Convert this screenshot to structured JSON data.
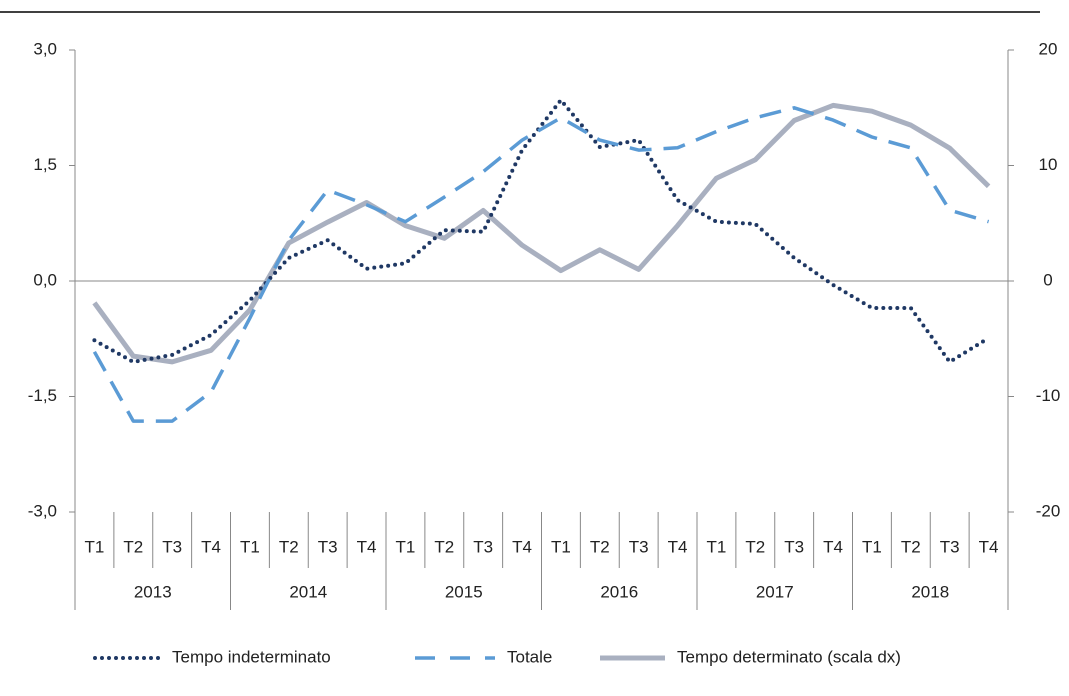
{
  "chart_data": {
    "type": "line",
    "categories": [
      "T1",
      "T2",
      "T3",
      "T4",
      "T1",
      "T2",
      "T3",
      "T4",
      "T1",
      "T2",
      "T3",
      "T4",
      "T1",
      "T2",
      "T3",
      "T4",
      "T1",
      "T2",
      "T3",
      "T4",
      "T1",
      "T2",
      "T3",
      "T4"
    ],
    "years": [
      "2013",
      "2014",
      "2015",
      "2016",
      "2017",
      "2018"
    ],
    "series": [
      {
        "name": "Tempo indeterminato",
        "color": "#1f3864",
        "style": "dotted",
        "values": [
          -0.77,
          -1.05,
          -0.96,
          -0.7,
          -0.25,
          0.3,
          0.53,
          0.16,
          0.23,
          0.66,
          0.64,
          1.7,
          2.35,
          1.74,
          1.83,
          1.05,
          0.77,
          0.74,
          0.3,
          -0.05,
          -0.35,
          -0.35,
          -1.05,
          -0.74
        ]
      },
      {
        "name": "Totale",
        "color": "#5b9bd5",
        "style": "dashed",
        "values": [
          -0.92,
          -1.82,
          -1.82,
          -1.44,
          -0.48,
          0.53,
          1.18,
          0.99,
          0.77,
          1.09,
          1.42,
          1.83,
          2.12,
          1.83,
          1.7,
          1.73,
          1.94,
          2.12,
          2.25,
          2.09,
          1.87,
          1.73,
          0.92,
          0.77
        ]
      },
      {
        "name": "Tempo determinato (scala dx)",
        "color": "#a9b0c0",
        "style": "solid",
        "axis": "y2",
        "values": [
          -1.9,
          -6.5,
          -7.0,
          -6.0,
          -2.5,
          3.3,
          5.1,
          6.8,
          4.8,
          3.7,
          6.1,
          3.1,
          0.9,
          2.7,
          1.0,
          4.8,
          8.9,
          10.5,
          13.9,
          15.2,
          14.7,
          13.5,
          11.5,
          8.2
        ]
      }
    ],
    "ylim": [
      -3,
      3
    ],
    "yticks": [
      {
        "value": 3,
        "label": "3,0"
      },
      {
        "value": 1.5,
        "label": "1,5"
      },
      {
        "value": 0,
        "label": "0,0"
      },
      {
        "value": -1.5,
        "label": "-1,5"
      },
      {
        "value": -3,
        "label": "-3,0"
      }
    ],
    "y2lim": [
      -20,
      20
    ],
    "y2ticks": [
      20,
      10,
      0,
      -10,
      -20
    ],
    "legend": "bottom"
  }
}
